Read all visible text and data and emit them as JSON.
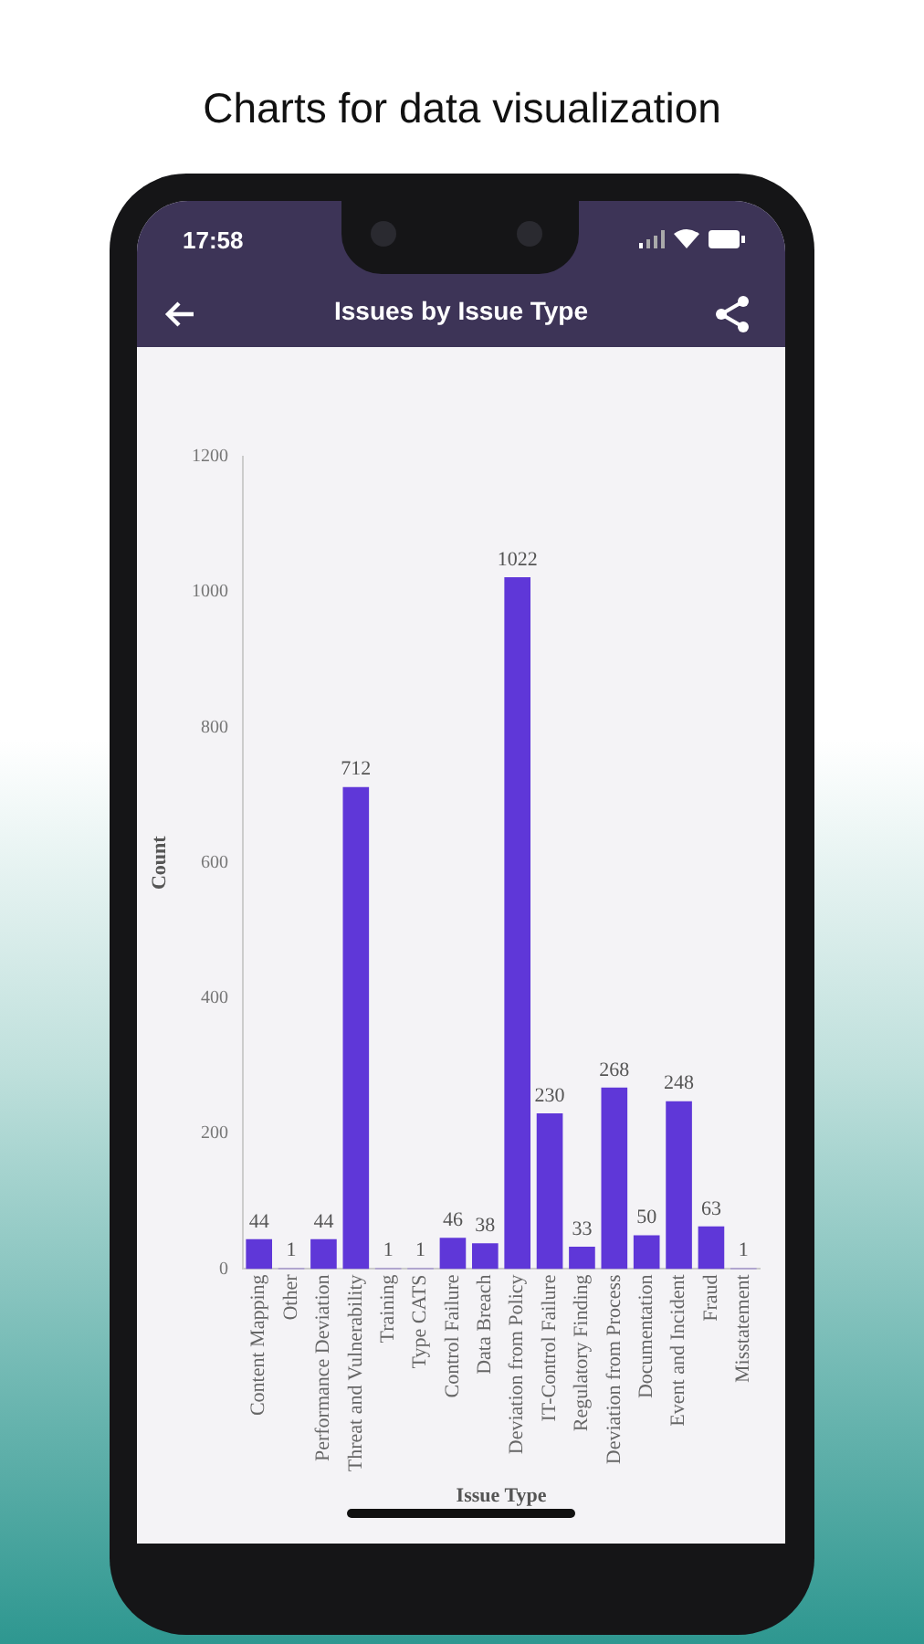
{
  "chart_data": {
    "type": "bar",
    "title": "Issues by Issue Type",
    "xlabel": "Issue Type",
    "ylabel": "Count",
    "categories": [
      "Content Mapping",
      "Other",
      "Performance Deviation",
      "Threat and Vulnerability",
      "Training",
      "Type CATS",
      "Control Failure",
      "Data Breach",
      "Deviation from Policy",
      "IT-Control Failure",
      "Regulatory Finding",
      "Deviation from Process",
      "Documentation",
      "Event and Incident",
      "Fraud",
      "Misstatement"
    ],
    "values": [
      44,
      1,
      44,
      712,
      1,
      1,
      46,
      38,
      1022,
      230,
      33,
      268,
      50,
      248,
      63,
      1
    ],
    "color": "#5f37d8",
    "ylim": [
      0,
      1200
    ],
    "yticks": [
      0,
      200,
      400,
      600,
      800,
      1000,
      1200
    ],
    "grid": false,
    "legend": false,
    "data_labels": true,
    "annotations": [
      "Charts for data visualization",
      "17:58"
    ]
  }
}
